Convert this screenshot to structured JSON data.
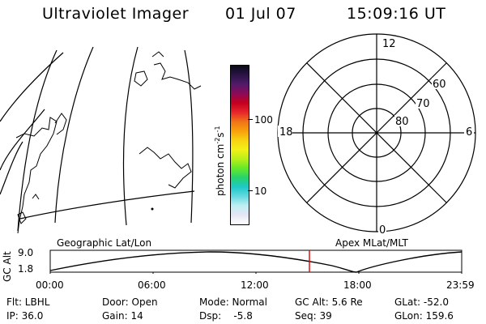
{
  "header": {
    "title": "Ultraviolet Imager",
    "date": "01 Jul 07",
    "time": "15:09:16 UT"
  },
  "colorbar": {
    "unit_label": "photon cm",
    "unit_sup1": "-2",
    "unit_s": "s",
    "unit_sup2": "-1",
    "tick_100": "100",
    "tick_10": "10",
    "colors": [
      "#ffffff",
      "#e6e6f4",
      "#bfeff2",
      "#66d9e0",
      "#1ec8c8",
      "#27d36c",
      "#64e82a",
      "#b9ef1b",
      "#f2f017",
      "#f8d312",
      "#f8a00c",
      "#f07418",
      "#e6252a",
      "#c4001e",
      "#8c0a5a",
      "#521a6a",
      "#2a1545",
      "#0b0a1c"
    ]
  },
  "polar": {
    "label_top": "12",
    "label_left": "18",
    "label_right": "6",
    "label_bottom": "0",
    "ring_60": "60",
    "ring_70": "70",
    "ring_80": "80"
  },
  "timeline": {
    "left_label": "Geographic Lat/Lon",
    "right_label": "Apex MLat/MLT",
    "axis_label": "GC Alt",
    "y_top": "9.0",
    "y_bottom": "1.8",
    "x_ticks": [
      "00:00",
      "06:00",
      "12:00",
      "18:00",
      "23:59"
    ],
    "marker_time": "15:09"
  },
  "info": {
    "flt": "Flt: LBHL",
    "ip": "IP: 36.0",
    "door": "Door: Open",
    "gain": "Gain: 14",
    "mode": "Mode: Normal",
    "dsp": "Dsp:    -5.8",
    "gc_alt": "GC Alt: 5.6 Re",
    "seq": "Seq: 39",
    "glat": "GLat: -52.0",
    "glon": "GLon: 159.6"
  }
}
